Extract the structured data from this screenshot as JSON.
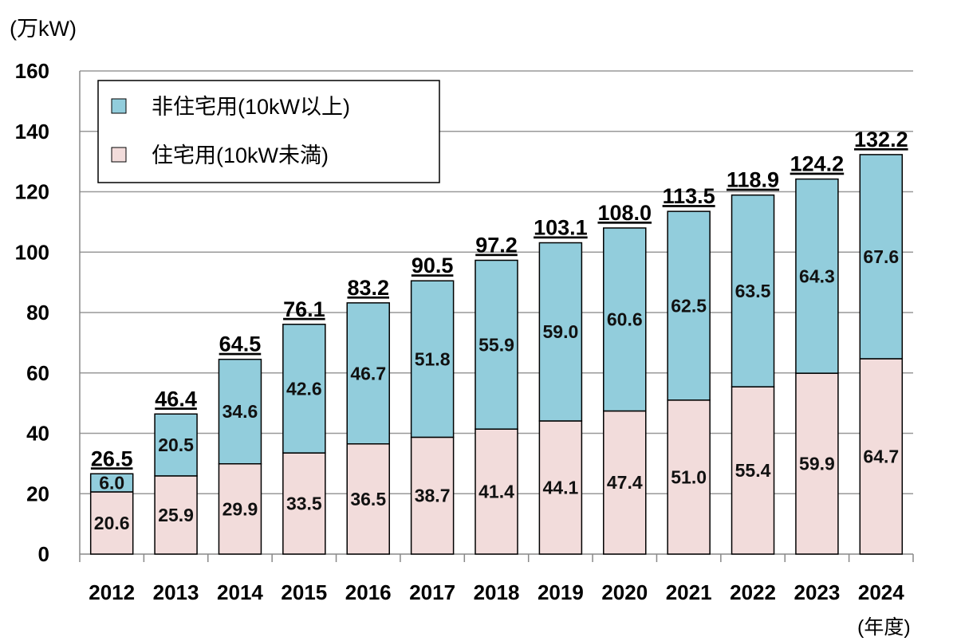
{
  "chart_data": {
    "type": "bar",
    "stacked": true,
    "unit_label": "(万kW)",
    "x_unit_label": "(年度)",
    "categories": [
      "2012",
      "2013",
      "2014",
      "2015",
      "2016",
      "2017",
      "2018",
      "2019",
      "2020",
      "2021",
      "2022",
      "2023",
      "2024"
    ],
    "series": [
      {
        "name": "住宅用(10kW未満)",
        "color": "#f2dcdb",
        "values": [
          20.6,
          25.9,
          29.9,
          33.5,
          36.5,
          38.7,
          41.4,
          44.1,
          47.4,
          51.0,
          55.4,
          59.9,
          64.7
        ]
      },
      {
        "name": "非住宅用(10kW以上)",
        "color": "#92cddc",
        "values": [
          6.0,
          20.5,
          34.6,
          42.6,
          46.7,
          51.8,
          55.9,
          59.0,
          60.6,
          62.5,
          63.5,
          64.3,
          67.6
        ]
      }
    ],
    "totals": [
      "26.5",
      "46.4",
      "64.5",
      "76.1",
      "83.2",
      "90.5",
      "97.2",
      "103.1",
      "108.0",
      "113.5",
      "118.9",
      "124.2",
      "132.2"
    ],
    "ylim": [
      0,
      160
    ],
    "yticks": [
      0,
      20,
      40,
      60,
      80,
      100,
      120,
      140,
      160
    ],
    "grid": true,
    "legend": "top-left"
  }
}
